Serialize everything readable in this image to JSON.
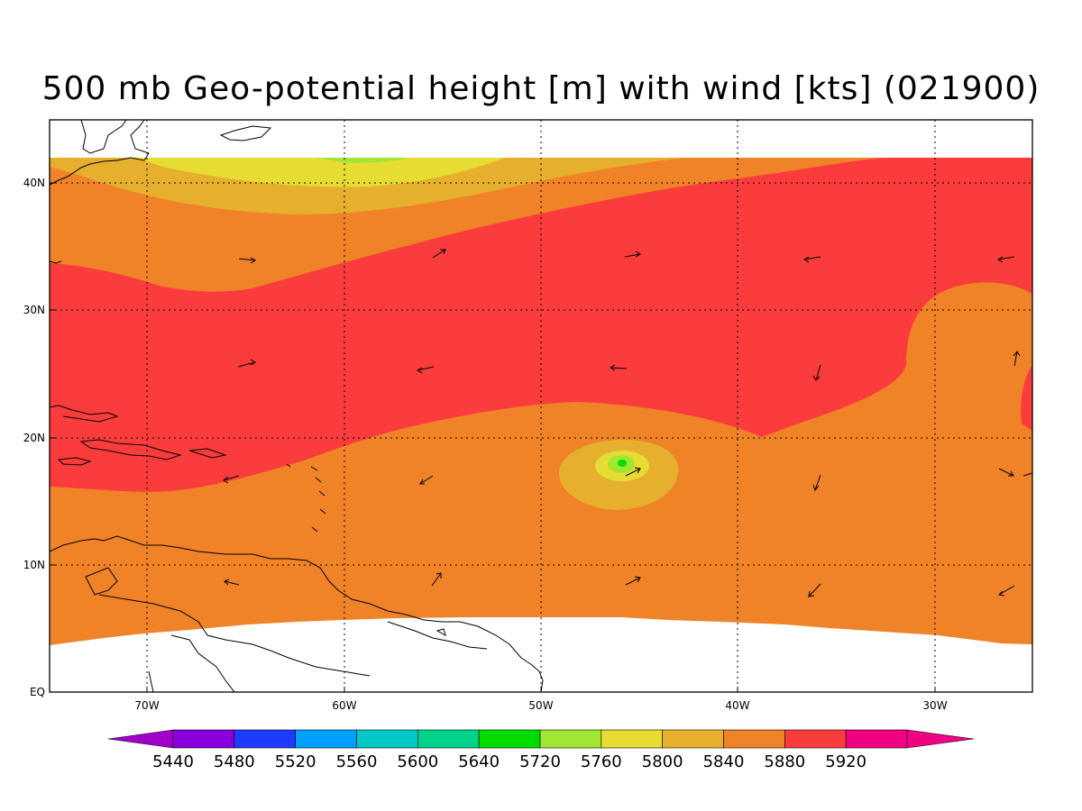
{
  "title": "500 mb Geo-potential height [m] with wind [kts] (021900)",
  "axes": {
    "lat_labels": [
      "EQ",
      "10N",
      "20N",
      "30N",
      "40N"
    ],
    "lon_labels": [
      "70W",
      "60W",
      "50W",
      "40W",
      "30W"
    ]
  },
  "colorbar": {
    "labels": [
      "5440",
      "5480",
      "5520",
      "5560",
      "5600",
      "5640",
      "5720",
      "5760",
      "5800",
      "5840",
      "5880",
      "5920"
    ],
    "colors": [
      "#8a00dc",
      "#1e3cff",
      "#00a0ff",
      "#00c8c8",
      "#00d28c",
      "#00dc00",
      "#a0e632",
      "#e6dc32",
      "#e6af2d",
      "#f08228",
      "#fa3c3c",
      "#f00082"
    ],
    "left_triangle_color": "#a000c8",
    "right_triangle_color": "#f00082"
  },
  "palette": {
    "band_5880": "#f08228",
    "band_5920": "#fa3c3c",
    "band_5840": "#e6af2d",
    "band_5800": "#e6dc32",
    "band_5760": "#a0e632",
    "band_5720": "#00dc00"
  }
}
